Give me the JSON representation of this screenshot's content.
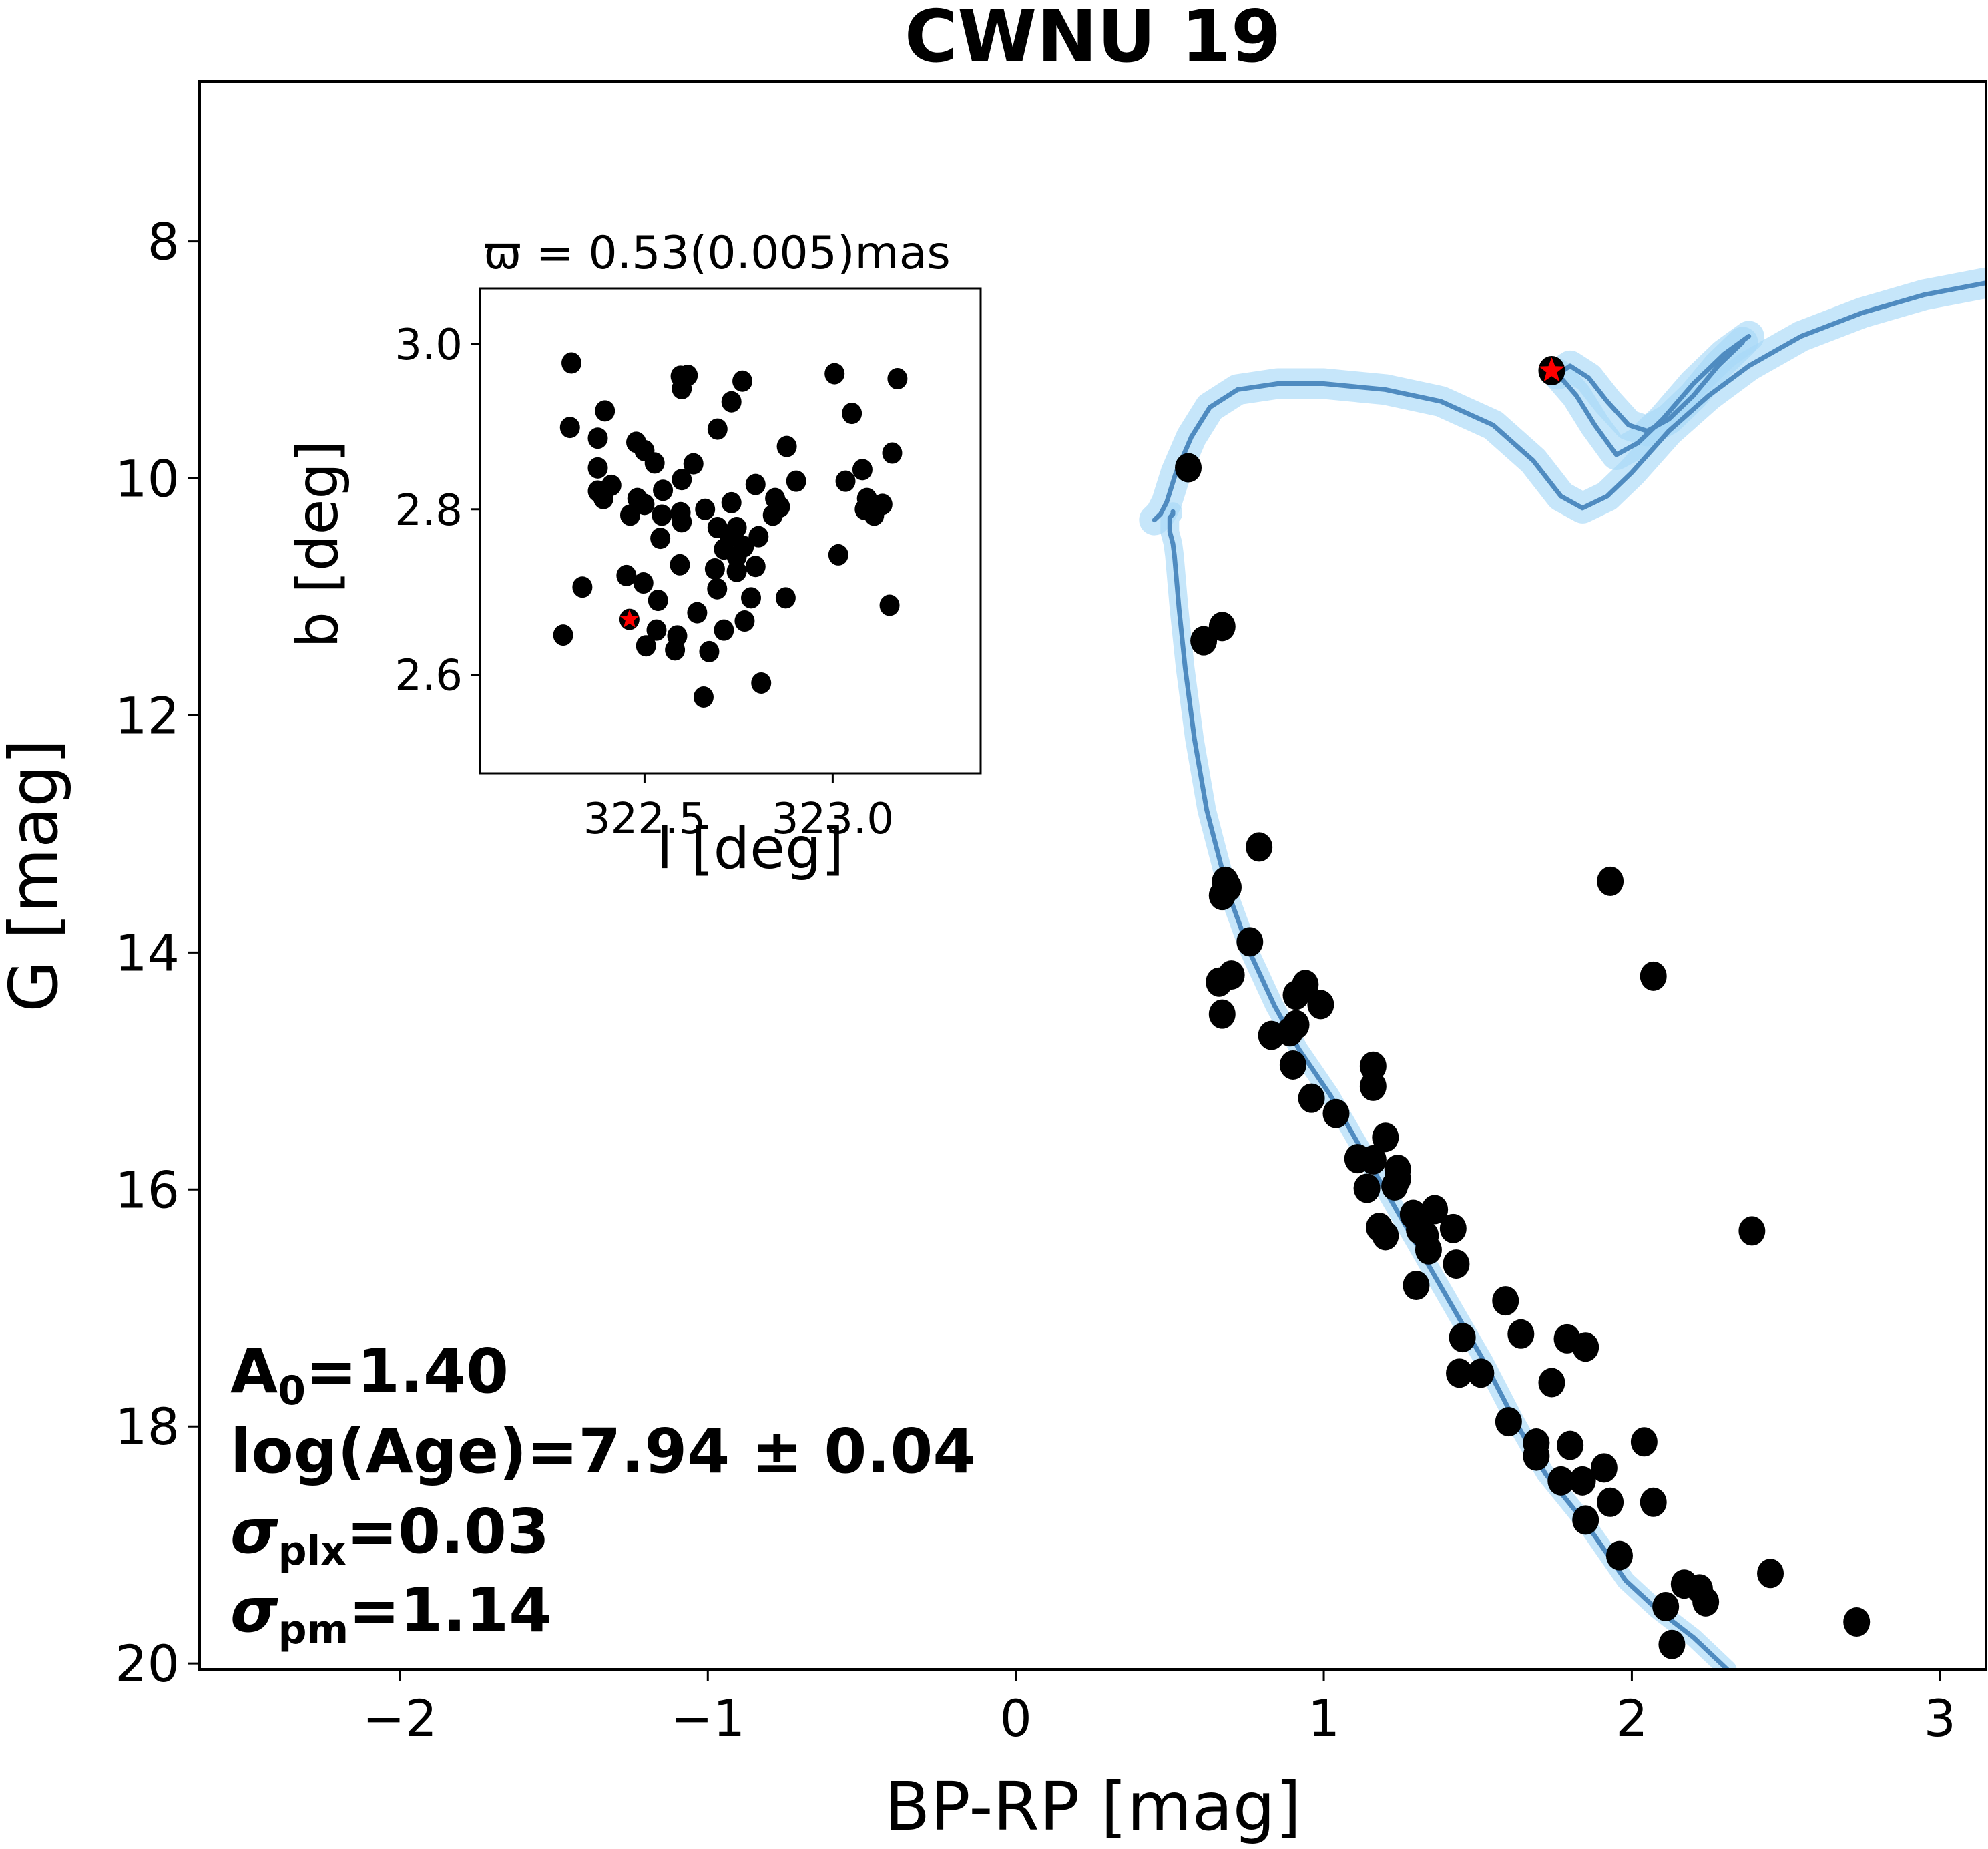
{
  "chart_data": [
    {
      "type": "scatter",
      "title": "CWNU 19",
      "xlabel": "BP-RP [mag]",
      "ylabel": "G [mag]",
      "xlim": [
        -2.65,
        3.15
      ],
      "ylim": [
        20.05,
        6.65
      ],
      "y_inverted": true,
      "grid": false,
      "x_ticks": [
        -2,
        -1,
        0,
        1,
        2,
        3
      ],
      "x_tick_labels": [
        "−2",
        "−1",
        "0",
        "1",
        "2",
        "3"
      ],
      "y_ticks": [
        8,
        10,
        12,
        14,
        16,
        18,
        20
      ],
      "y_tick_labels": [
        "8",
        "10",
        "12",
        "14",
        "16",
        "18",
        "20"
      ],
      "members": {
        "name": "cluster members",
        "color": "#000000",
        "x": [
          0.56,
          0.61,
          0.67,
          0.79,
          0.68,
          0.67,
          0.69,
          0.76,
          0.66,
          0.7,
          0.67,
          0.83,
          0.89,
          0.91,
          0.94,
          0.91,
          0.99,
          0.9,
          0.96,
          1.04,
          1.16,
          1.16,
          1.11,
          1.2,
          1.16,
          1.24,
          1.14,
          1.23,
          1.24,
          1.18,
          1.2,
          1.29,
          1.36,
          1.33,
          1.42,
          1.31,
          1.34,
          1.43,
          1.3,
          1.59,
          1.45,
          1.64,
          1.44,
          1.51,
          1.79,
          1.85,
          1.74,
          1.6,
          1.69,
          1.69,
          1.8,
          1.77,
          1.84,
          1.91,
          1.85,
          1.93,
          2.04,
          2.07,
          1.96,
          2.17,
          2.22,
          2.24,
          2.11,
          2.13,
          1.93,
          2.07,
          2.39,
          2.45,
          2.73
        ],
        "y": [
          9.91,
          11.37,
          11.25,
          13.11,
          13.4,
          13.52,
          13.45,
          13.91,
          14.25,
          14.19,
          14.52,
          14.7,
          14.67,
          14.36,
          14.27,
          14.61,
          14.44,
          14.95,
          15.23,
          15.36,
          14.96,
          15.13,
          15.74,
          15.56,
          15.75,
          15.83,
          15.99,
          15.97,
          15.91,
          16.32,
          16.39,
          16.21,
          16.17,
          16.39,
          16.33,
          16.34,
          16.51,
          16.63,
          16.81,
          16.94,
          17.25,
          17.22,
          17.55,
          17.55,
          17.26,
          17.33,
          17.63,
          17.96,
          18.14,
          18.25,
          18.16,
          18.46,
          18.46,
          18.35,
          18.79,
          18.64,
          18.13,
          18.64,
          19.09,
          19.33,
          19.37,
          19.48,
          19.52,
          19.84,
          13.4,
          14.2,
          16.35,
          19.24,
          19.65
        ]
      },
      "highlight_star": {
        "name": "highlighted star",
        "x": 1.74,
        "y": 9.09,
        "marker": "star",
        "color": "#ff0000"
      },
      "isochrone": {
        "name": "best-fit isochrone",
        "color": "#4f8bc0",
        "band_color": "#a8d8f8",
        "segments": [
          {
            "x": [
              2.31,
              2.2,
              2.08,
              1.98,
              1.86,
              1.72,
              1.62,
              1.52,
              1.42,
              1.32,
              1.22,
              1.12,
              1.02,
              0.92,
              0.84,
              0.76,
              0.69,
              0.62,
              0.58,
              0.55,
              0.53,
              0.52,
              0.515,
              0.51,
              0.505,
              0.5,
              0.5,
              0.5,
              0.5,
              0.51,
              0.51
            ],
            "y": [
              20.05,
              19.78,
              19.54,
              19.3,
              18.85,
              18.4,
              17.95,
              17.45,
              17.0,
              16.55,
              16.1,
              15.65,
              15.2,
              14.82,
              14.45,
              14.0,
              13.5,
              12.8,
              12.2,
              11.6,
              11.1,
              10.8,
              10.65,
              10.55,
              10.5,
              10.45,
              10.4,
              10.35,
              10.33,
              10.3,
              10.28
            ]
          },
          {
            "x": [
              0.45,
              0.47,
              0.49,
              0.52,
              0.57,
              0.63,
              0.72,
              0.85,
              1.0,
              1.2,
              1.38,
              1.55,
              1.68,
              1.77,
              1.84,
              1.92,
              2.0,
              2.12,
              2.25,
              2.38,
              2.55,
              2.75,
              2.95,
              3.15
            ],
            "y": [
              10.35,
              10.3,
              10.2,
              9.95,
              9.65,
              9.4,
              9.25,
              9.2,
              9.2,
              9.25,
              9.35,
              9.55,
              9.85,
              10.15,
              10.25,
              10.15,
              9.95,
              9.6,
              9.3,
              9.05,
              8.8,
              8.6,
              8.45,
              8.35
            ]
          },
          {
            "x": [
              1.76,
              1.8,
              1.86,
              1.92,
              1.99,
              2.05,
              2.12,
              2.2,
              2.28,
              2.36
            ],
            "y": [
              9.12,
              9.05,
              9.15,
              9.35,
              9.55,
              9.6,
              9.5,
              9.3,
              9.05,
              8.85
            ]
          },
          {
            "x": [
              1.76,
              1.82,
              1.88,
              1.95,
              2.02,
              2.1,
              2.2,
              2.3,
              2.38
            ],
            "y": [
              9.12,
              9.3,
              9.55,
              9.8,
              9.7,
              9.5,
              9.2,
              8.95,
              8.8
            ]
          }
        ]
      },
      "annotations": [
        {
          "main": "A",
          "sub": "0",
          "rest": "=1.40"
        },
        {
          "main": "log(Age)",
          "sub": "",
          "rest": "=7.94 ± 0.04"
        },
        {
          "main": "σ",
          "sub": "plx",
          "rest": "=0.03"
        },
        {
          "main": "σ",
          "sub": "pm",
          "rest": "=1.14"
        }
      ]
    },
    {
      "type": "scatter",
      "title": "ϖ = 0.53(0.005)mas",
      "xlabel": "l [deg]",
      "ylabel": "b [deg]",
      "xlim": [
        322.063,
        323.393
      ],
      "ylim": [
        2.481,
        3.067
      ],
      "grid": false,
      "x_ticks": [
        322.5,
        323.0
      ],
      "x_tick_labels": [
        "322.5",
        "323.0"
      ],
      "y_ticks": [
        2.6,
        2.8,
        3.0
      ],
      "y_tick_labels": [
        "2.6",
        "2.8",
        "3.0"
      ],
      "members": {
        "name": "cluster members (sky)",
        "color": "#000000",
        "l": [
          322.306,
          322.302,
          322.284,
          322.335,
          322.395,
          322.376,
          322.376,
          322.412,
          322.376,
          322.391,
          322.478,
          322.5,
          322.527,
          322.481,
          322.5,
          322.462,
          322.549,
          322.546,
          322.542,
          322.452,
          322.497,
          322.536,
          322.532,
          322.504,
          322.596,
          322.615,
          322.599,
          322.731,
          322.76,
          322.694,
          322.63,
          322.599,
          322.596,
          322.599,
          322.661,
          322.731,
          322.795,
          322.847,
          322.86,
          322.841,
          322.694,
          322.726,
          322.745,
          322.803,
          322.711,
          322.745,
          322.764,
          322.687,
          322.745,
          322.795,
          322.693,
          322.875,
          322.783,
          322.766,
          322.711,
          322.64,
          322.672,
          322.587,
          322.581,
          322.594,
          322.657,
          322.81,
          322.878,
          322.903,
          323.005,
          323.051,
          323.172,
          323.158,
          323.079,
          323.034,
          323.091,
          323.085,
          323.11,
          323.132,
          323.015,
          323.151
        ],
        "b": [
          2.977,
          2.899,
          2.648,
          2.706,
          2.919,
          2.886,
          2.85,
          2.829,
          2.822,
          2.813,
          2.881,
          2.871,
          2.856,
          2.813,
          2.806,
          2.793,
          2.823,
          2.793,
          2.765,
          2.72,
          2.711,
          2.69,
          2.654,
          2.635,
          2.961,
          2.962,
          2.946,
          2.93,
          2.955,
          2.897,
          2.855,
          2.836,
          2.796,
          2.785,
          2.8,
          2.808,
          2.83,
          2.813,
          2.803,
          2.793,
          2.778,
          2.767,
          2.778,
          2.767,
          2.752,
          2.743,
          2.755,
          2.728,
          2.725,
          2.731,
          2.704,
          2.693,
          2.693,
          2.665,
          2.654,
          2.675,
          2.628,
          2.647,
          2.63,
          2.733,
          2.573,
          2.59,
          2.876,
          2.834,
          2.964,
          2.916,
          2.958,
          2.868,
          2.848,
          2.834,
          2.813,
          2.8,
          2.793,
          2.806,
          2.745,
          2.684
        ]
      },
      "highlight_star": {
        "name": "highlighted star (sky)",
        "l": 322.46,
        "b": 2.667,
        "marker": "star",
        "color": "#ff0000"
      }
    }
  ]
}
